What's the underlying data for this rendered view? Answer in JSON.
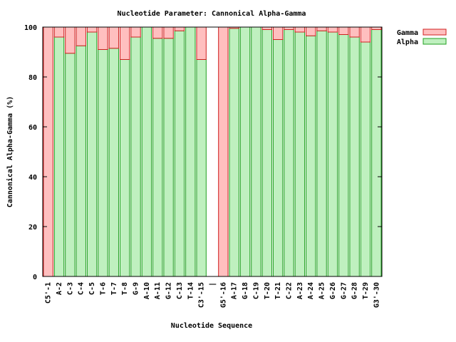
{
  "chart_data": {
    "type": "stacked_bar",
    "title": "Nucleotide Parameter: Cannonical Alpha-Gamma",
    "x_label": "Nucleotide Sequence",
    "y_label": "Cannonical Alpha-Gamma (%)",
    "categories": [
      "C5'-1",
      "A-2",
      "C-3",
      "C-4",
      "C-5",
      "T-6",
      "T-7",
      "T-8",
      "G-9",
      "A-10",
      "A-11",
      "G-12",
      "C-13",
      "T-14",
      "C3'-15",
      "|",
      "G5'-16",
      "A-17",
      "G-18",
      "C-19",
      "T-20",
      "T-21",
      "C-22",
      "A-23",
      "A-24",
      "A-25",
      "G-26",
      "G-27",
      "G-28",
      "T-29",
      "G3'-30"
    ],
    "series": [
      {
        "name": "Alpha",
        "color": "#bff0bf",
        "stroke": "#20a020",
        "values": [
          0,
          96,
          89.5,
          92.5,
          98,
          91,
          91.5,
          87,
          96,
          100,
          95.5,
          95.5,
          98.5,
          100,
          87,
          null,
          0,
          99.5,
          100,
          100,
          99,
          95,
          99,
          98,
          96.5,
          98.5,
          98,
          97,
          96,
          94,
          99
        ]
      },
      {
        "name": "Gamma",
        "color": "#ffbfbf",
        "stroke": "#d02020",
        "values": [
          100,
          4,
          10.5,
          7.5,
          2,
          9,
          8.5,
          13,
          4,
          0,
          4.5,
          4.5,
          1.5,
          0,
          13,
          null,
          100,
          0.5,
          0,
          0,
          1,
          5,
          1,
          2,
          3.5,
          1.5,
          2,
          3,
          4,
          6,
          1
        ]
      }
    ],
    "ylim": [
      0,
      100
    ],
    "yticks": [
      0,
      20,
      40,
      60,
      80,
      100
    ],
    "legend": "outside-top-right"
  }
}
